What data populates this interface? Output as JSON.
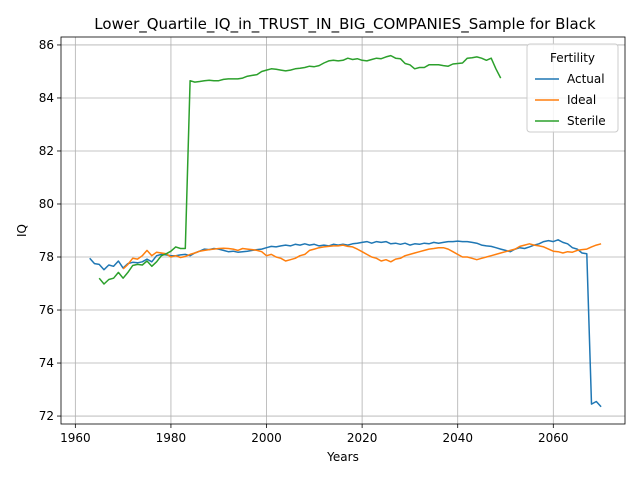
{
  "chart_data": {
    "type": "line",
    "title": "Lower_Quartile_IQ_in_TRUST_IN_BIG_COMPANIES_Sample for Black",
    "xlabel": "Years",
    "ylabel": "IQ",
    "xlim": [
      1957,
      2075
    ],
    "ylim": [
      71.7,
      86.3
    ],
    "x_ticks": [
      1960,
      1980,
      2000,
      2020,
      2040,
      2060
    ],
    "y_ticks": [
      72,
      74,
      76,
      78,
      80,
      82,
      84,
      86
    ],
    "grid": true,
    "legend": {
      "title": "Fertility",
      "placement": "top-right"
    },
    "series": [
      {
        "name": "Actual",
        "color": "#1f77b4",
        "x": [
          1963,
          1964,
          1965,
          1966,
          1967,
          1968,
          1969,
          1970,
          1971,
          1972,
          1973,
          1974,
          1975,
          1976,
          1977,
          1978,
          1979,
          1980,
          1981,
          1982,
          1983,
          1984,
          1985,
          1986,
          1987,
          1988,
          1989,
          1990,
          1991,
          1992,
          1993,
          1994,
          1995,
          1996,
          1997,
          1998,
          1999,
          2000,
          2001,
          2002,
          2003,
          2004,
          2005,
          2006,
          2007,
          2008,
          2009,
          2010,
          2011,
          2012,
          2013,
          2014,
          2015,
          2016,
          2017,
          2018,
          2019,
          2020,
          2021,
          2022,
          2023,
          2024,
          2025,
          2026,
          2027,
          2028,
          2029,
          2030,
          2031,
          2032,
          2033,
          2034,
          2035,
          2036,
          2037,
          2038,
          2039,
          2040,
          2041,
          2042,
          2043,
          2044,
          2045,
          2046,
          2047,
          2048,
          2049,
          2050,
          2051,
          2052,
          2053,
          2054,
          2055,
          2056,
          2057,
          2058,
          2059,
          2060,
          2061,
          2062,
          2063,
          2064,
          2065,
          2066,
          2067,
          2068,
          2069,
          2070
        ],
        "values": [
          77.95,
          77.75,
          77.72,
          77.52,
          77.7,
          77.65,
          77.85,
          77.58,
          77.75,
          77.8,
          77.78,
          77.82,
          77.92,
          77.82,
          78.05,
          78.1,
          78.08,
          78.05,
          78.05,
          78.08,
          78.1,
          78.05,
          78.15,
          78.22,
          78.3,
          78.28,
          78.32,
          78.3,
          78.25,
          78.2,
          78.22,
          78.18,
          78.2,
          78.22,
          78.25,
          78.28,
          78.3,
          78.35,
          78.4,
          78.38,
          78.42,
          78.45,
          78.42,
          78.48,
          78.45,
          78.5,
          78.45,
          78.48,
          78.42,
          78.45,
          78.42,
          78.48,
          78.45,
          78.48,
          78.45,
          78.5,
          78.52,
          78.55,
          78.58,
          78.52,
          78.58,
          78.55,
          78.58,
          78.5,
          78.52,
          78.48,
          78.52,
          78.45,
          78.5,
          78.48,
          78.52,
          78.5,
          78.55,
          78.52,
          78.55,
          78.58,
          78.58,
          78.6,
          78.58,
          78.58,
          78.55,
          78.52,
          78.45,
          78.42,
          78.4,
          78.35,
          78.3,
          78.25,
          78.2,
          78.3,
          78.35,
          78.32,
          78.38,
          78.45,
          78.5,
          78.58,
          78.62,
          78.58,
          78.65,
          78.55,
          78.5,
          78.35,
          78.3,
          78.15,
          78.12,
          72.45,
          72.55,
          72.35
        ]
      },
      {
        "name": "Ideal",
        "color": "#ff7f0e",
        "x": [
          1970,
          1971,
          1972,
          1973,
          1974,
          1975,
          1976,
          1977,
          1978,
          1979,
          1980,
          1981,
          1982,
          1983,
          1984,
          1985,
          1986,
          1987,
          1988,
          1989,
          1990,
          1991,
          1992,
          1993,
          1994,
          1995,
          1996,
          1997,
          1998,
          1999,
          2000,
          2001,
          2002,
          2003,
          2004,
          2005,
          2006,
          2007,
          2008,
          2009,
          2010,
          2011,
          2012,
          2013,
          2014,
          2015,
          2016,
          2017,
          2018,
          2019,
          2020,
          2021,
          2022,
          2023,
          2024,
          2025,
          2026,
          2027,
          2028,
          2029,
          2030,
          2031,
          2032,
          2033,
          2034,
          2035,
          2036,
          2037,
          2038,
          2039,
          2040,
          2041,
          2042,
          2043,
          2044,
          2045,
          2046,
          2047,
          2048,
          2049,
          2050,
          2051,
          2052,
          2053,
          2054,
          2055,
          2056,
          2057,
          2058,
          2059,
          2060,
          2061,
          2062,
          2063,
          2064,
          2065,
          2066,
          2067,
          2068,
          2069,
          2070
        ],
        "values": [
          77.55,
          77.72,
          77.95,
          77.92,
          78.05,
          78.25,
          78.05,
          78.18,
          78.15,
          78.12,
          78.0,
          78.05,
          77.98,
          78.02,
          78.1,
          78.15,
          78.22,
          78.25,
          78.28,
          78.3,
          78.32,
          78.33,
          78.32,
          78.3,
          78.25,
          78.32,
          78.3,
          78.28,
          78.25,
          78.2,
          78.05,
          78.1,
          78.0,
          77.95,
          77.85,
          77.9,
          77.95,
          78.05,
          78.1,
          78.25,
          78.3,
          78.35,
          78.38,
          78.4,
          78.42,
          78.42,
          78.45,
          78.4,
          78.38,
          78.3,
          78.2,
          78.1,
          78.0,
          77.95,
          77.85,
          77.9,
          77.82,
          77.92,
          77.95,
          78.05,
          78.1,
          78.15,
          78.2,
          78.25,
          78.3,
          78.32,
          78.35,
          78.35,
          78.3,
          78.2,
          78.1,
          78.0,
          78.0,
          77.95,
          77.9,
          77.95,
          78.0,
          78.05,
          78.1,
          78.15,
          78.2,
          78.25,
          78.3,
          78.4,
          78.45,
          78.5,
          78.45,
          78.42,
          78.38,
          78.3,
          78.22,
          78.2,
          78.15,
          78.2,
          78.18,
          78.25,
          78.28,
          78.3,
          78.38,
          78.45,
          78.5
        ]
      },
      {
        "name": "Sterile",
        "color": "#2ca02c",
        "x": [
          1965,
          1966,
          1967,
          1968,
          1969,
          1970,
          1971,
          1972,
          1973,
          1974,
          1975,
          1976,
          1977,
          1978,
          1979,
          1980,
          1981,
          1982,
          1983,
          1984,
          1985,
          1986,
          1987,
          1988,
          1989,
          1990,
          1991,
          1992,
          1993,
          1994,
          1995,
          1996,
          1997,
          1998,
          1999,
          2000,
          2001,
          2002,
          2003,
          2004,
          2005,
          2006,
          2007,
          2008,
          2009,
          2010,
          2011,
          2012,
          2013,
          2014,
          2015,
          2016,
          2017,
          2018,
          2019,
          2020,
          2021,
          2022,
          2023,
          2024,
          2025,
          2026,
          2027,
          2028,
          2029,
          2030,
          2031,
          2032,
          2033,
          2034,
          2035,
          2036,
          2037,
          2038,
          2039,
          2040,
          2041,
          2042,
          2043,
          2044,
          2045,
          2046,
          2047,
          2048,
          2049
        ],
        "values": [
          77.2,
          76.98,
          77.15,
          77.2,
          77.42,
          77.2,
          77.42,
          77.68,
          77.72,
          77.7,
          77.85,
          77.65,
          77.82,
          78.05,
          78.12,
          78.22,
          78.38,
          78.32,
          78.32,
          84.65,
          84.6,
          84.62,
          84.65,
          84.67,
          84.65,
          84.65,
          84.7,
          84.72,
          84.72,
          84.72,
          84.75,
          84.82,
          84.85,
          84.88,
          85.0,
          85.05,
          85.1,
          85.08,
          85.05,
          85.02,
          85.05,
          85.1,
          85.12,
          85.15,
          85.2,
          85.18,
          85.22,
          85.32,
          85.4,
          85.42,
          85.4,
          85.42,
          85.5,
          85.45,
          85.48,
          85.42,
          85.4,
          85.45,
          85.5,
          85.48,
          85.55,
          85.6,
          85.5,
          85.48,
          85.3,
          85.25,
          85.1,
          85.15,
          85.15,
          85.25,
          85.25,
          85.25,
          85.22,
          85.2,
          85.28,
          85.3,
          85.32,
          85.5,
          85.52,
          85.55,
          85.5,
          85.42,
          85.5,
          85.1,
          84.75
        ]
      }
    ]
  }
}
